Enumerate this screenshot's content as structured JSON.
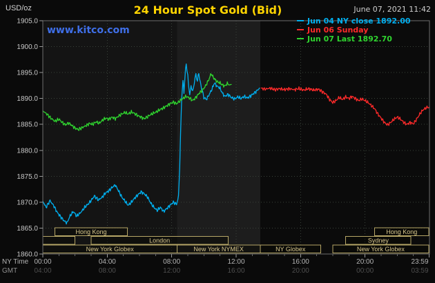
{
  "header": {
    "units": "USD/oz",
    "title": "24 Hour Spot Gold (Bid)",
    "datetime": "June 07, 2021 11:42",
    "watermark": "www.kitco.com"
  },
  "colors": {
    "title": "#ffd400",
    "watermark": "#3f6fe8",
    "background": "#0a0a0a",
    "grid": "#3a433a",
    "frame": "#6e6e6e"
  },
  "legend": [
    {
      "label": "Jun 04 NY close 1892.00",
      "color": "#00b0f0"
    },
    {
      "label": "Jun 06 Sunday",
      "color": "#ff2a2a"
    },
    {
      "label": "Jun 07 Last 1892.70",
      "color": "#2fd42f"
    }
  ],
  "chart_data": {
    "type": "line",
    "title": "24 Hour Spot Gold (Bid)",
    "ylabel": "USD/oz",
    "ylim": [
      1860,
      1905
    ],
    "yticks": [
      1860,
      1865,
      1870,
      1875,
      1880,
      1885,
      1890,
      1895,
      1900,
      1905
    ],
    "axis_rows": {
      "ny": "NY Time",
      "gmt": "GMT"
    },
    "xticks": [
      {
        "hour": 0,
        "ny": "00:00",
        "gmt": "04:00"
      },
      {
        "hour": 4,
        "ny": "04:00",
        "gmt": "08:00"
      },
      {
        "hour": 8,
        "ny": "08:00",
        "gmt": "12:00"
      },
      {
        "hour": 12,
        "ny": "12:00",
        "gmt": "16:00"
      },
      {
        "hour": 16,
        "ny": "16:00",
        "gmt": "20:00"
      },
      {
        "hour": 20,
        "ny": "20:00",
        "gmt": "00:00"
      },
      {
        "hour": 23.983,
        "ny": "23:59",
        "gmt": "03:59"
      }
    ],
    "nymex_band": [
      8.33,
      13.5
    ],
    "series": [
      {
        "key": "jun04",
        "name": "Jun 04 NY close",
        "close": 1892.0,
        "color": "#00b0f0",
        "points": [
          [
            0.0,
            1870.2
          ],
          [
            0.2,
            1869.0
          ],
          [
            0.45,
            1870.3
          ],
          [
            0.7,
            1869.2
          ],
          [
            0.9,
            1868.0
          ],
          [
            1.1,
            1867.2
          ],
          [
            1.35,
            1866.3
          ],
          [
            1.5,
            1866.0
          ],
          [
            1.7,
            1867.4
          ],
          [
            1.9,
            1868.2
          ],
          [
            2.1,
            1867.3
          ],
          [
            2.35,
            1868.0
          ],
          [
            2.6,
            1869.0
          ],
          [
            2.8,
            1869.6
          ],
          [
            3.0,
            1870.3
          ],
          [
            3.2,
            1871.2
          ],
          [
            3.45,
            1870.4
          ],
          [
            3.7,
            1871.0
          ],
          [
            3.9,
            1871.8
          ],
          [
            4.1,
            1872.2
          ],
          [
            4.35,
            1873.0
          ],
          [
            4.5,
            1873.3
          ],
          [
            4.7,
            1872.2
          ],
          [
            4.9,
            1871.0
          ],
          [
            5.1,
            1870.2
          ],
          [
            5.3,
            1869.4
          ],
          [
            5.5,
            1870.0
          ],
          [
            5.7,
            1870.8
          ],
          [
            5.9,
            1871.4
          ],
          [
            6.1,
            1872.0
          ],
          [
            6.3,
            1871.6
          ],
          [
            6.5,
            1871.0
          ],
          [
            6.7,
            1869.8
          ],
          [
            6.9,
            1869.0
          ],
          [
            7.1,
            1868.4
          ],
          [
            7.3,
            1869.0
          ],
          [
            7.5,
            1868.2
          ],
          [
            7.7,
            1868.8
          ],
          [
            7.9,
            1869.4
          ],
          [
            8.1,
            1870.0
          ],
          [
            8.3,
            1869.6
          ],
          [
            8.42,
            1871.0
          ],
          [
            8.5,
            1877.0
          ],
          [
            8.56,
            1884.0
          ],
          [
            8.62,
            1890.0
          ],
          [
            8.7,
            1893.5
          ],
          [
            8.76,
            1891.2
          ],
          [
            8.82,
            1894.0
          ],
          [
            8.9,
            1896.8
          ],
          [
            9.0,
            1894.3
          ],
          [
            9.06,
            1892.0
          ],
          [
            9.12,
            1890.6
          ],
          [
            9.2,
            1892.4
          ],
          [
            9.3,
            1891.4
          ],
          [
            9.4,
            1893.0
          ],
          [
            9.5,
            1894.6
          ],
          [
            9.6,
            1893.4
          ],
          [
            9.68,
            1895.0
          ],
          [
            9.78,
            1893.0
          ],
          [
            9.9,
            1891.4
          ],
          [
            10.0,
            1890.2
          ],
          [
            10.15,
            1889.8
          ],
          [
            10.3,
            1890.6
          ],
          [
            10.5,
            1891.8
          ],
          [
            10.65,
            1893.0
          ],
          [
            10.8,
            1892.4
          ],
          [
            11.0,
            1892.0
          ],
          [
            11.15,
            1891.0
          ],
          [
            11.3,
            1890.4
          ],
          [
            11.5,
            1890.8
          ],
          [
            11.7,
            1890.2
          ],
          [
            11.9,
            1889.9
          ],
          [
            12.1,
            1890.3
          ],
          [
            12.3,
            1890.0
          ],
          [
            12.5,
            1890.4
          ],
          [
            12.7,
            1890.1
          ],
          [
            12.9,
            1890.5
          ],
          [
            13.1,
            1891.0
          ],
          [
            13.3,
            1891.5
          ],
          [
            13.45,
            1892.0
          ]
        ]
      },
      {
        "key": "jun06",
        "name": "Jun 06 Sunday",
        "color": "#ff2a2a",
        "points": [
          [
            13.55,
            1892.0
          ],
          [
            13.8,
            1891.8
          ],
          [
            14.1,
            1892.0
          ],
          [
            14.4,
            1891.7
          ],
          [
            14.7,
            1891.9
          ],
          [
            15.0,
            1891.7
          ],
          [
            15.3,
            1891.9
          ],
          [
            15.6,
            1891.7
          ],
          [
            15.9,
            1891.9
          ],
          [
            16.2,
            1891.6
          ],
          [
            16.5,
            1891.9
          ],
          [
            16.8,
            1891.6
          ],
          [
            17.1,
            1891.8
          ],
          [
            17.35,
            1891.3
          ],
          [
            17.6,
            1890.8
          ],
          [
            17.8,
            1889.8
          ],
          [
            18.0,
            1889.2
          ],
          [
            18.2,
            1889.6
          ],
          [
            18.4,
            1890.2
          ],
          [
            18.6,
            1889.8
          ],
          [
            18.8,
            1890.3
          ],
          [
            19.0,
            1890.0
          ],
          [
            19.2,
            1890.4
          ],
          [
            19.4,
            1890.0
          ],
          [
            19.6,
            1889.6
          ],
          [
            19.8,
            1889.9
          ],
          [
            20.0,
            1889.6
          ],
          [
            20.2,
            1889.2
          ],
          [
            20.4,
            1888.6
          ],
          [
            20.6,
            1888.0
          ],
          [
            20.8,
            1887.0
          ],
          [
            21.0,
            1886.2
          ],
          [
            21.2,
            1885.4
          ],
          [
            21.4,
            1884.9
          ],
          [
            21.6,
            1885.4
          ],
          [
            21.8,
            1886.0
          ],
          [
            22.0,
            1886.4
          ],
          [
            22.2,
            1886.0
          ],
          [
            22.4,
            1885.4
          ],
          [
            22.6,
            1885.0
          ],
          [
            22.8,
            1885.4
          ],
          [
            23.0,
            1885.1
          ],
          [
            23.2,
            1886.0
          ],
          [
            23.4,
            1887.0
          ],
          [
            23.6,
            1887.8
          ],
          [
            23.8,
            1888.2
          ],
          [
            23.98,
            1888.3
          ]
        ]
      },
      {
        "key": "jun07",
        "name": "Jun 07",
        "last": 1892.7,
        "color": "#2fd42f",
        "points": [
          [
            0.0,
            1887.6
          ],
          [
            0.25,
            1887.0
          ],
          [
            0.5,
            1886.2
          ],
          [
            0.75,
            1885.6
          ],
          [
            1.0,
            1886.0
          ],
          [
            1.2,
            1885.4
          ],
          [
            1.4,
            1884.9
          ],
          [
            1.6,
            1885.3
          ],
          [
            1.8,
            1884.8
          ],
          [
            2.0,
            1884.3
          ],
          [
            2.2,
            1884.0
          ],
          [
            2.45,
            1884.4
          ],
          [
            2.7,
            1884.8
          ],
          [
            2.9,
            1885.2
          ],
          [
            3.1,
            1885.0
          ],
          [
            3.3,
            1885.5
          ],
          [
            3.5,
            1885.2
          ],
          [
            3.7,
            1885.8
          ],
          [
            3.9,
            1886.2
          ],
          [
            4.1,
            1886.0
          ],
          [
            4.3,
            1886.4
          ],
          [
            4.5,
            1886.1
          ],
          [
            4.7,
            1886.6
          ],
          [
            4.9,
            1887.0
          ],
          [
            5.1,
            1887.3
          ],
          [
            5.3,
            1887.0
          ],
          [
            5.5,
            1887.4
          ],
          [
            5.7,
            1887.1
          ],
          [
            5.9,
            1886.7
          ],
          [
            6.1,
            1886.4
          ],
          [
            6.3,
            1886.1
          ],
          [
            6.5,
            1886.5
          ],
          [
            6.7,
            1886.9
          ],
          [
            6.9,
            1887.2
          ],
          [
            7.1,
            1887.5
          ],
          [
            7.3,
            1887.9
          ],
          [
            7.5,
            1888.2
          ],
          [
            7.7,
            1888.6
          ],
          [
            7.9,
            1889.0
          ],
          [
            8.1,
            1889.3
          ],
          [
            8.3,
            1889.0
          ],
          [
            8.5,
            1889.5
          ],
          [
            8.7,
            1890.0
          ],
          [
            8.9,
            1890.4
          ],
          [
            9.1,
            1890.1
          ],
          [
            9.3,
            1889.6
          ],
          [
            9.5,
            1890.2
          ],
          [
            9.7,
            1891.0
          ],
          [
            9.9,
            1891.6
          ],
          [
            10.1,
            1892.4
          ],
          [
            10.3,
            1893.6
          ],
          [
            10.45,
            1894.8
          ],
          [
            10.55,
            1894.2
          ],
          [
            10.7,
            1893.6
          ],
          [
            10.85,
            1893.2
          ],
          [
            11.0,
            1893.0
          ],
          [
            11.15,
            1892.6
          ],
          [
            11.3,
            1892.4
          ],
          [
            11.45,
            1892.9
          ],
          [
            11.6,
            1892.6
          ],
          [
            11.7,
            1892.7
          ]
        ]
      }
    ]
  },
  "sessions": {
    "box_stroke": "#b7a767",
    "label_color": "#d8c78c",
    "rows": [
      [
        {
          "label": "Hong Kong",
          "start": 0.75,
          "end": 5.25
        },
        {
          "label": "Hong Kong",
          "start": 20.6,
          "end": 23.95
        }
      ],
      [
        {
          "label": "",
          "start": 0,
          "end": 2.0
        },
        {
          "label": "London",
          "start": 3.0,
          "end": 11.5
        },
        {
          "label": "Sydney",
          "start": 18.8,
          "end": 22.85
        }
      ],
      [
        {
          "label": "New York Globex",
          "start": 0,
          "end": 8.33
        },
        {
          "label": "New York NYMEX",
          "start": 8.33,
          "end": 13.5
        },
        {
          "label": "NY Globex",
          "start": 13.5,
          "end": 17.25
        },
        {
          "label": "New York Globex",
          "start": 18.0,
          "end": 23.95
        }
      ]
    ]
  }
}
